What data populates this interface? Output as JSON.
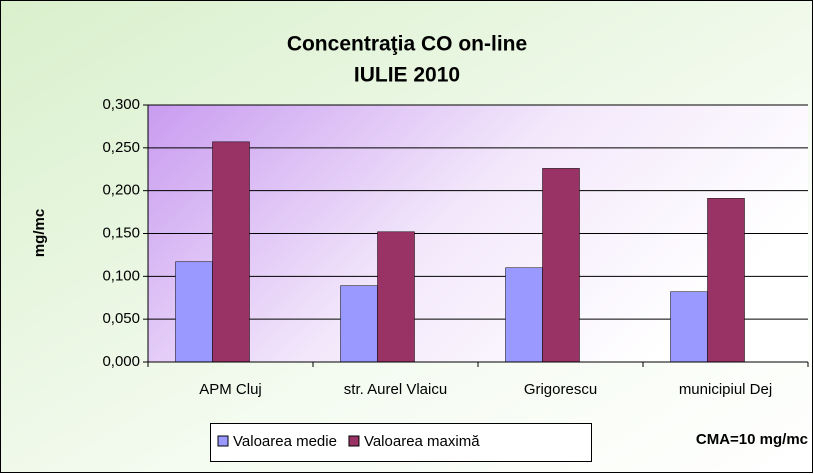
{
  "chart_data": {
    "type": "bar",
    "title": "Concentraţia CO on-line",
    "subtitle": "IULIE 2010",
    "y_label": "mg/mc",
    "annotation": "CMA=10 mg/mc",
    "categories": [
      "APM Cluj",
      "str. Aurel Vlaicu",
      "Grigorescu",
      "municipiul Dej"
    ],
    "series": [
      {
        "name": "Valoarea medie",
        "color": "#9999ff",
        "values": [
          0.117,
          0.089,
          0.11,
          0.082
        ]
      },
      {
        "name": "Valoarea maximă",
        "color": "#993366",
        "values": [
          0.257,
          0.152,
          0.226,
          0.191
        ]
      }
    ],
    "ylim": [
      0,
      0.3
    ],
    "yticks": [
      {
        "value": 0,
        "label": "0,000"
      },
      {
        "value": 0.05,
        "label": "0,050"
      },
      {
        "value": 0.1,
        "label": "0,100"
      },
      {
        "value": 0.15,
        "label": "0,150"
      },
      {
        "value": 0.2,
        "label": "0,200"
      },
      {
        "value": 0.25,
        "label": "0,250"
      },
      {
        "value": 0.3,
        "label": "0,300"
      }
    ],
    "grid": true,
    "legend": "bottom"
  }
}
